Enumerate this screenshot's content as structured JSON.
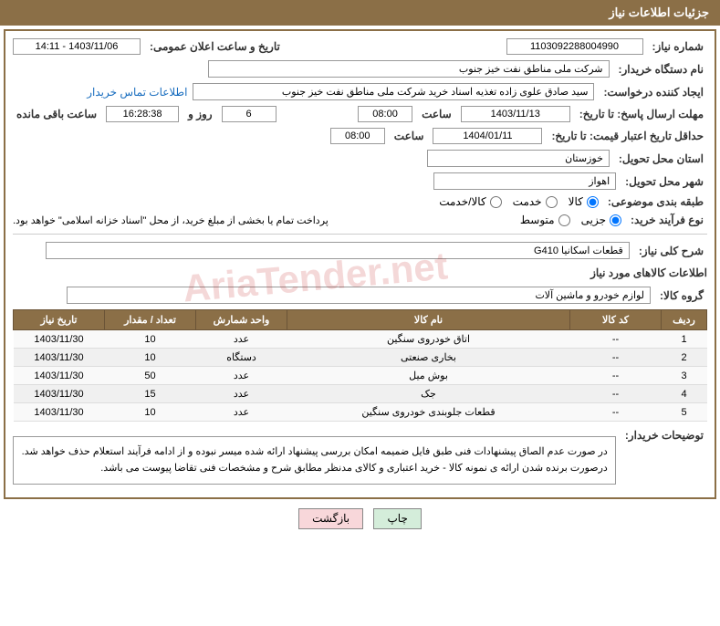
{
  "header": {
    "title": "جزئیات اطلاعات نیاز"
  },
  "fields": {
    "need_number_label": "شماره نیاز:",
    "need_number": "1103092288004990",
    "announce_date_label": "تاریخ و ساعت اعلان عمومی:",
    "announce_date": "1403/11/06 - 14:11",
    "buyer_org_label": "نام دستگاه خریدار:",
    "buyer_org": "شرکت ملی مناطق نفت خیز جنوب",
    "requester_label": "ایجاد کننده درخواست:",
    "requester": "سید صادق علوی زاده   تغذیه اسناد خرید   شرکت ملی مناطق نفت خیز جنوب",
    "contact_link": "اطلاعات تماس خریدار",
    "response_deadline_label": "مهلت ارسال پاسخ: تا تاریخ:",
    "response_deadline_date": "1403/11/13",
    "time_label": "ساعت",
    "response_deadline_time": "08:00",
    "days_remaining": "6",
    "days_label": "روز و",
    "time_remaining": "16:28:38",
    "time_remaining_label": "ساعت باقی مانده",
    "price_validity_label": "حداقل تاریخ اعتبار قیمت: تا تاریخ:",
    "price_validity_date": "1404/01/11",
    "price_validity_time": "08:00",
    "delivery_province_label": "استان محل تحویل:",
    "delivery_province": "خوزستان",
    "delivery_city_label": "شهر محل تحویل:",
    "delivery_city": "اهواز",
    "category_label": "طبقه بندی موضوعی:",
    "radio_goods": "کالا",
    "radio_service": "خدمت",
    "radio_goods_service": "کالا/خدمت",
    "purchase_process_label": "نوع فرآیند خرید:",
    "radio_partial": "جزیی",
    "radio_medium": "متوسط",
    "payment_note": "پرداخت تمام یا بخشی از مبلغ خرید، از محل \"اسناد خزانه اسلامی\" خواهد بود.",
    "general_desc_label": "شرح کلی نیاز:",
    "general_desc": "قطعات اسکانیا G410",
    "goods_info_title": "اطلاعات کالاهای مورد نیاز",
    "goods_group_label": "گروه کالا:",
    "goods_group": "لوازم خودرو و ماشین آلات",
    "buyer_notes_label": "توضیحات خریدار:",
    "buyer_notes_line1": "در صورت عدم الصاق پیشنهادات فنی طبق فایل ضمیمه امکان بررسی پیشنهاد ارائه شده میسر نبوده و از ادامه فرآیند استعلام حذف خواهد شد.",
    "buyer_notes_line2": "درصورت برنده شدن ارائه ی نمونه کالا - خرید اعتباری و کالای مدنظر مطابق شرح و مشخصات فنی تقاضا پیوست می باشد."
  },
  "table": {
    "headers": [
      "ردیف",
      "کد کالا",
      "نام کالا",
      "واحد شمارش",
      "تعداد / مقدار",
      "تاریخ نیاز"
    ],
    "rows": [
      [
        "1",
        "--",
        "اتاق خودروی سنگین",
        "عدد",
        "10",
        "1403/11/30"
      ],
      [
        "2",
        "--",
        "بخاری صنعتی",
        "دستگاه",
        "10",
        "1403/11/30"
      ],
      [
        "3",
        "--",
        "بوش میل",
        "عدد",
        "50",
        "1403/11/30"
      ],
      [
        "4",
        "--",
        "جک",
        "عدد",
        "15",
        "1403/11/30"
      ],
      [
        "5",
        "--",
        "قطعات جلوبندی خودروی سنگین",
        "عدد",
        "10",
        "1403/11/30"
      ]
    ]
  },
  "buttons": {
    "print": "چاپ",
    "back": "بازگشت"
  },
  "watermark": "AriaTender.net"
}
